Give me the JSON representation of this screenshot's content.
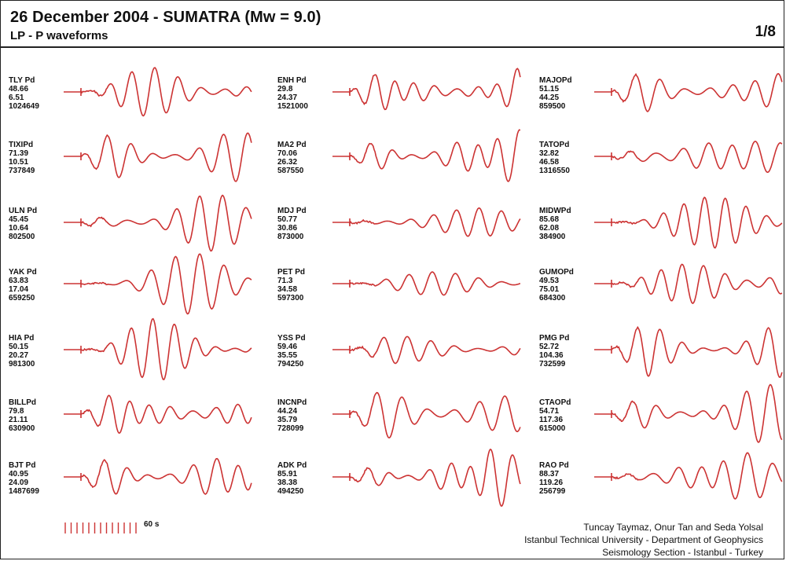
{
  "header": {
    "title": "26 December 2004 - SUMATRA (Mw = 9.0)",
    "subtitle": "LP - P waveforms",
    "page": "1/8"
  },
  "trace_color": "#cc3333",
  "columns": [
    [
      {
        "name": "TLY Pd",
        "v1": "48.66",
        "v2": "6.51",
        "v3": "1024649"
      },
      {
        "name": "TIXIPd",
        "v1": "71.39",
        "v2": "10.51",
        "v3": "737849"
      },
      {
        "name": "ULN Pd",
        "v1": "45.45",
        "v2": "10.64",
        "v3": "802500"
      },
      {
        "name": "YAK Pd",
        "v1": "63.83",
        "v2": "17.04",
        "v3": "659250"
      },
      {
        "name": "HIA Pd",
        "v1": "50.15",
        "v2": "20.27",
        "v3": "981300"
      },
      {
        "name": "BILLPd",
        "v1": "79.8",
        "v2": "21.11",
        "v3": "630900"
      },
      {
        "name": "BJT Pd",
        "v1": "40.95",
        "v2": "24.09",
        "v3": "1487699"
      }
    ],
    [
      {
        "name": "ENH Pd",
        "v1": "29.8",
        "v2": "24.37",
        "v3": "1521000"
      },
      {
        "name": "MA2 Pd",
        "v1": "70.06",
        "v2": "26.32",
        "v3": "587550"
      },
      {
        "name": "MDJ Pd",
        "v1": "50.77",
        "v2": "30.86",
        "v3": "873000"
      },
      {
        "name": "PET Pd",
        "v1": "71.3",
        "v2": "34.58",
        "v3": "597300"
      },
      {
        "name": "YSS Pd",
        "v1": "59.46",
        "v2": "35.55",
        "v3": "794250"
      },
      {
        "name": "INCNPd",
        "v1": "44.24",
        "v2": "35.79",
        "v3": "728099"
      },
      {
        "name": "ADK Pd",
        "v1": "85.91",
        "v2": "38.38",
        "v3": "494250"
      }
    ],
    [
      {
        "name": "MAJOPd",
        "v1": "51.15",
        "v2": "44.25",
        "v3": "859500"
      },
      {
        "name": "TATOPd",
        "v1": "32.82",
        "v2": "46.58",
        "v3": "1316550"
      },
      {
        "name": "MIDWPd",
        "v1": "85.68",
        "v2": "62.08",
        "v3": "384900"
      },
      {
        "name": "GUMOPd",
        "v1": "49.53",
        "v2": "75.01",
        "v3": "684300"
      },
      {
        "name": "PMG Pd",
        "v1": "52.72",
        "v2": "104.36",
        "v3": "732599"
      },
      {
        "name": "CTAOPd",
        "v1": "54.71",
        "v2": "117.36",
        "v3": "615000"
      },
      {
        "name": "RAO Pd",
        "v1": "88.37",
        "v2": "119.26",
        "v3": "256799"
      }
    ]
  ],
  "scale_label": "60 s",
  "credits": {
    "line1": "Tuncay Taymaz, Onur Tan and Seda Yolsal",
    "line2": "Istanbul Technical University - Department of Geophysics",
    "line3": "Seismology Section - Istanbul - Turkey"
  }
}
